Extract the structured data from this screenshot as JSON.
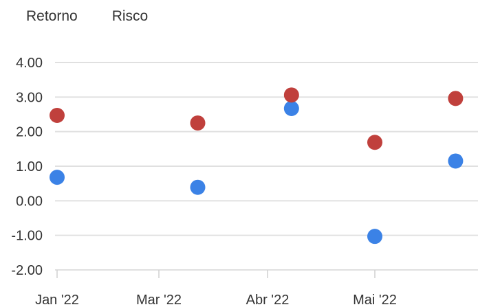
{
  "legend": {
    "items": [
      "Retorno",
      "Risco"
    ]
  },
  "chart_data": {
    "type": "scatter",
    "x_tick_labels": [
      "Jan '22",
      "Mar '22",
      "Abr '22",
      "Mai '22"
    ],
    "y_tick_labels": [
      "4.00",
      "3.00",
      "2.00",
      "1.00",
      "0.00",
      "-1.00",
      "-2.00"
    ],
    "ylim": [
      -2,
      4
    ],
    "grid": true,
    "legend_position": "top-left",
    "series": [
      {
        "name": "Retorno",
        "color": "#3b82e6",
        "points": [
          {
            "x": "2022-01-01",
            "y": 0.68
          },
          {
            "x": "2022-02-24",
            "y": 0.39
          },
          {
            "x": "2022-04-01",
            "y": 2.67
          },
          {
            "x": "2022-05-03",
            "y": -1.03
          },
          {
            "x": "2022-06-03",
            "y": 1.15
          }
        ]
      },
      {
        "name": "Risco",
        "color": "#c0403c",
        "points": [
          {
            "x": "2022-01-01",
            "y": 2.47
          },
          {
            "x": "2022-02-24",
            "y": 2.25
          },
          {
            "x": "2022-04-01",
            "y": 3.06
          },
          {
            "x": "2022-05-03",
            "y": 1.69
          },
          {
            "x": "2022-06-03",
            "y": 2.96
          }
        ]
      }
    ]
  }
}
